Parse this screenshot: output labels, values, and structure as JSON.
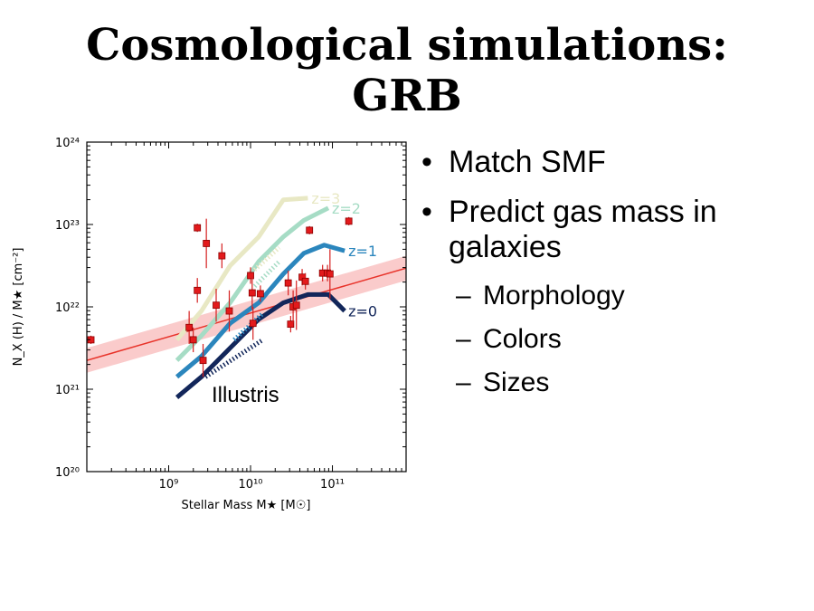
{
  "slide": {
    "title_line1": "Cosmological simulations:",
    "title_line2": "GRB",
    "bullets": [
      "Match SMF",
      "Predict gas mass in galaxies"
    ],
    "sub_bullets": [
      "Morphology",
      "Colors",
      "Sizes"
    ]
  },
  "chart_data": {
    "type": "line",
    "xlabel": "Stellar Mass M★ [M☉]",
    "ylabel": "N_X (H) / M★ [cm⁻²]",
    "xscale": "log",
    "yscale": "log",
    "xlim_log10": [
      8.0,
      11.9
    ],
    "ylim_log10": [
      20,
      24
    ],
    "x_ticks": [
      {
        "log": 9,
        "label": "10⁹"
      },
      {
        "log": 10,
        "label": "10¹⁰"
      },
      {
        "log": 11,
        "label": "10¹¹"
      }
    ],
    "y_ticks": [
      {
        "log": 20,
        "label": "10²⁰"
      },
      {
        "log": 21,
        "label": "10²¹"
      },
      {
        "log": 22,
        "label": "10²²"
      },
      {
        "log": 23,
        "label": "10²³"
      },
      {
        "log": 24,
        "label": "10²⁴"
      }
    ],
    "annotation": "Illustris",
    "series": [
      {
        "name": "z=3",
        "color": "#e8e8c4",
        "x": [
          9.1,
          9.4,
          9.75,
          10.1,
          10.4,
          10.7
        ],
        "y": [
          21.6,
          21.95,
          22.5,
          22.85,
          23.3,
          23.32
        ]
      },
      {
        "name": "z=2",
        "color": "#a6dcc5",
        "x": [
          9.1,
          9.4,
          9.75,
          10.1,
          10.4,
          10.65,
          10.95
        ],
        "y": [
          21.35,
          21.65,
          22.05,
          22.55,
          22.85,
          23.05,
          23.2
        ]
      },
      {
        "name": "z=1",
        "color": "#2b86bd",
        "x": [
          9.1,
          9.4,
          9.75,
          10.1,
          10.4,
          10.65,
          10.9,
          11.15
        ],
        "y": [
          21.15,
          21.4,
          21.8,
          22.05,
          22.4,
          22.65,
          22.75,
          22.68
        ]
      },
      {
        "name": "z=0",
        "color": "#12265a",
        "x": [
          9.1,
          9.4,
          9.75,
          10.1,
          10.4,
          10.7,
          10.95,
          11.15
        ],
        "y": [
          20.9,
          21.15,
          21.5,
          21.85,
          22.05,
          22.15,
          22.15,
          21.95
        ]
      }
    ],
    "dotted_series": [
      {
        "color": "#e8e8c4",
        "x": [
          10.05,
          10.35
        ],
        "y": [
          22.45,
          22.72
        ]
      },
      {
        "color": "#a6dcc5",
        "x": [
          10.05,
          10.35
        ],
        "y": [
          22.25,
          22.55
        ]
      },
      {
        "color": "#2b86bd",
        "x": [
          9.8,
          10.15
        ],
        "y": [
          21.6,
          21.92
        ]
      },
      {
        "color": "#12265a",
        "x": [
          9.45,
          10.15
        ],
        "y": [
          21.15,
          21.6
        ]
      }
    ],
    "fit_line": {
      "color": "#e8332a",
      "band_color": "#f5a0a0",
      "x": [
        8.0,
        11.9
      ],
      "y": [
        21.35,
        22.47
      ],
      "band_half_width": 0.15
    },
    "points": [
      {
        "x": 8.05,
        "y": 21.6,
        "err": 0.05
      },
      {
        "x": 9.25,
        "y": 21.75,
        "err": 0.2
      },
      {
        "x": 9.3,
        "y": 21.6,
        "err": 0.15
      },
      {
        "x": 9.35,
        "y": 22.2,
        "err": 0.15
      },
      {
        "x": 9.35,
        "y": 22.96,
        "err": 0.05
      },
      {
        "x": 9.42,
        "y": 21.35,
        "err": 0.2
      },
      {
        "x": 9.46,
        "y": 22.77,
        "err": 0.3
      },
      {
        "x": 9.58,
        "y": 22.02,
        "err": 0.2
      },
      {
        "x": 9.65,
        "y": 22.62,
        "err": 0.15
      },
      {
        "x": 9.74,
        "y": 21.95,
        "err": 0.25
      },
      {
        "x": 10.0,
        "y": 22.38,
        "err": 0.1
      },
      {
        "x": 10.02,
        "y": 22.17,
        "err": 0.2
      },
      {
        "x": 10.03,
        "y": 21.8,
        "err": 0.2
      },
      {
        "x": 10.12,
        "y": 22.16,
        "err": 0.1
      },
      {
        "x": 10.46,
        "y": 22.29,
        "err": 0.15
      },
      {
        "x": 10.49,
        "y": 21.79,
        "err": 0.1
      },
      {
        "x": 10.52,
        "y": 22.0,
        "err": 0.2
      },
      {
        "x": 10.56,
        "y": 22.02,
        "err": 0.3
      },
      {
        "x": 10.63,
        "y": 22.36,
        "err": 0.1
      },
      {
        "x": 10.67,
        "y": 22.31,
        "err": 0.1
      },
      {
        "x": 10.72,
        "y": 22.93,
        "err": 0.05
      },
      {
        "x": 10.88,
        "y": 22.41,
        "err": 0.1
      },
      {
        "x": 10.94,
        "y": 22.41,
        "err": 0.1
      },
      {
        "x": 10.97,
        "y": 22.4,
        "err": 0.3
      },
      {
        "x": 11.2,
        "y": 23.04,
        "err": 0.05
      }
    ]
  }
}
